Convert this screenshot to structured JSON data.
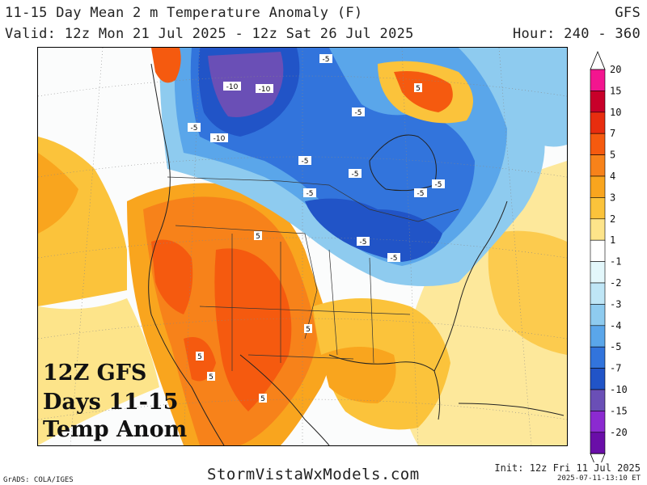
{
  "header": {
    "title": "11-15 Day Mean 2 m Temperature Anomaly (F)",
    "model": "GFS",
    "valid": "Valid: 12z Mon 21 Jul 2025 - 12z Sat 26 Jul 2025",
    "hour": "Hour: 240 - 360"
  },
  "overlay": {
    "line1": "12Z GFS",
    "line2": "Days 11-15",
    "line3": "Temp Anom"
  },
  "contour_labels": [
    "-10",
    "-10",
    "-10",
    "-5",
    "-5",
    "-5",
    "-5",
    "-5",
    "-5",
    "-5",
    "-5",
    "-5",
    "-5",
    "5",
    "5",
    "5",
    "5",
    "5",
    "5"
  ],
  "legend": {
    "levels": [
      "20",
      "15",
      "10",
      "7",
      "5",
      "4",
      "3",
      "2",
      "1",
      "-1",
      "-2",
      "-3",
      "-4",
      "-5",
      "-7",
      "-10",
      "-15",
      "-20"
    ],
    "colors": [
      "#f3158f",
      "#c8002a",
      "#e82d0f",
      "#f55a0f",
      "#f7821a",
      "#f9a51e",
      "#fbc33b",
      "#fde48a",
      "#ffffff",
      "#e3f7fb",
      "#bfe6f6",
      "#8ecbef",
      "#5aa6ea",
      "#3274dc",
      "#2154c7",
      "#6a4fb6",
      "#8b2ad0",
      "#6a0ea8"
    ]
  },
  "footer": {
    "site": "StormVistaWxModels.com",
    "init": "Init: 12z Fri 11 Jul 2025",
    "timestamp": "2025-07-11-13:10 ET",
    "grads": "GrADS: COLA/IGES"
  }
}
